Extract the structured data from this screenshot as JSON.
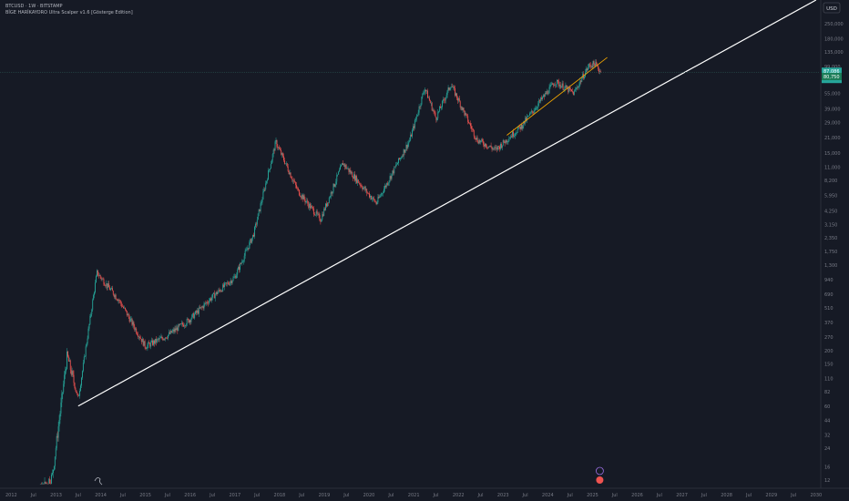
{
  "header": {
    "symbol_line": "BTCUSD · 1W · BITSTAMP",
    "indicator_line": "BİGE HARİKAYORO Ultra Scalper v1.6 [Gösterge Edition]",
    "currency_button": "USD"
  },
  "price_scale": {
    "ticks": [
      "12",
      "16",
      "24",
      "32",
      "44",
      "60",
      "82",
      "110",
      "150",
      "200",
      "270",
      "370",
      "510",
      "690",
      "940",
      "1,300",
      "1,750",
      "2,350",
      "3,150",
      "4,250",
      "5,950",
      "8,200",
      "11,000",
      "15,000",
      "21,000",
      "29,000",
      "39,000",
      "55,000",
      "75,000",
      "99,000",
      "135,000",
      "180,000",
      "250,000"
    ],
    "current_price_label": "87,086",
    "countdown_label": "4d 15h",
    "secondary_label": "80,750"
  },
  "time_scale": {
    "ticks": [
      "2012",
      "Jul",
      "2013",
      "Jul",
      "2014",
      "Jul",
      "2015",
      "Jul",
      "2016",
      "Jul",
      "2017",
      "Jul",
      "2018",
      "Jul",
      "2019",
      "Jul",
      "2020",
      "Jul",
      "2021",
      "Jul",
      "2022",
      "Jul",
      "2023",
      "Jul",
      "2024",
      "Jul",
      "2025",
      "Jul",
      "2026",
      "Jul",
      "2027",
      "Jul",
      "2028",
      "Jul",
      "2029",
      "Jul",
      "2030"
    ]
  },
  "colors": {
    "background": "#161a25",
    "up_candle": "#26a69a",
    "down_candle": "#ef5350",
    "trendline_main": "#ffffff",
    "trendline_secondary": "#f0a500",
    "axis_text": "#787b86",
    "price_label_bg": "#26a69a"
  },
  "chart_data": {
    "type": "line",
    "scale": "log",
    "x_axis": "date",
    "ylim": [
      10,
      420000
    ],
    "xlim": [
      "2011-10-01",
      "2030-02-01"
    ],
    "series": [
      {
        "values": [
          [
            "2012-01-01",
            6
          ],
          [
            "2012-07-01",
            8
          ],
          [
            "2012-12-01",
            13
          ],
          [
            "2013-04-01",
            180
          ],
          [
            "2013-07-01",
            70
          ],
          [
            "2013-12-01",
            1100
          ],
          [
            "2014-06-01",
            600
          ],
          [
            "2015-01-01",
            220
          ],
          [
            "2015-07-01",
            280
          ],
          [
            "2016-01-01",
            400
          ],
          [
            "2016-07-01",
            650
          ],
          [
            "2017-01-01",
            1000
          ],
          [
            "2017-06-01",
            2500
          ],
          [
            "2017-12-01",
            19000
          ],
          [
            "2018-06-01",
            6500
          ],
          [
            "2018-12-01",
            3500
          ],
          [
            "2019-06-01",
            12000
          ],
          [
            "2020-03-01",
            5000
          ],
          [
            "2020-12-01",
            20000
          ],
          [
            "2021-04-01",
            62000
          ],
          [
            "2021-07-01",
            32000
          ],
          [
            "2021-11-01",
            67000
          ],
          [
            "2022-06-01",
            20000
          ],
          [
            "2022-11-01",
            16000
          ],
          [
            "2023-06-01",
            27000
          ],
          [
            "2024-03-01",
            71000
          ],
          [
            "2024-08-01",
            55000
          ],
          [
            "2024-12-01",
            100000
          ],
          [
            "2025-01-20",
            105000
          ],
          [
            "2025-03-10",
            87086
          ]
        ]
      }
    ],
    "trendlines": [
      {
        "from": [
          "2013-07-01",
          60
        ],
        "to": [
          "2030-01-01",
          420000
        ],
        "color": "#ffffff"
      },
      {
        "from": [
          "2023-02-01",
          22000
        ],
        "to": [
          "2025-05-01",
          120000
        ],
        "color": "#f0a500"
      }
    ],
    "markers": [
      {
        "date": "2025-03-10",
        "price": 87086,
        "label": "87,086"
      }
    ]
  }
}
